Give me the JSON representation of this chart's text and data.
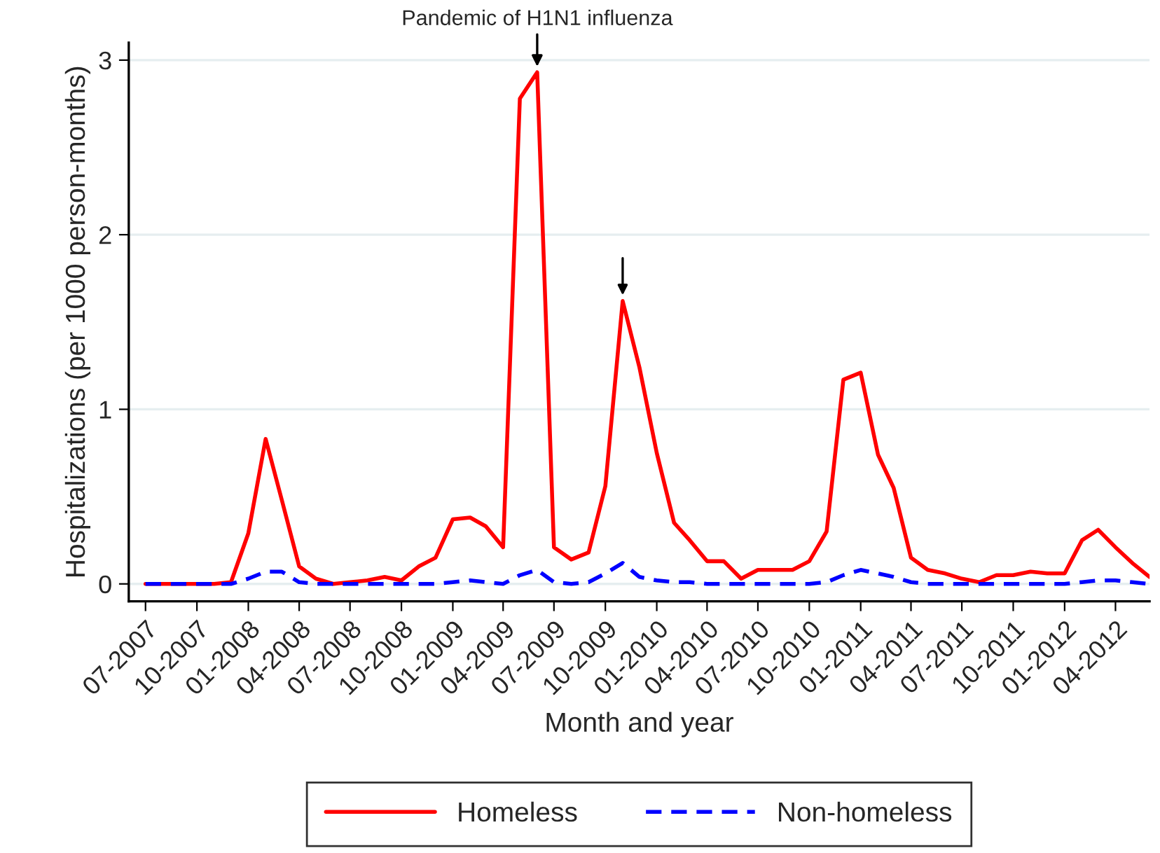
{
  "chart_data": {
    "type": "line",
    "xlabel": "Month and year",
    "ylabel": "Hospitalizations (per 1000 person-months)",
    "x": [
      "2007-07",
      "2007-08",
      "2007-09",
      "2007-10",
      "2007-11",
      "2007-12",
      "2008-01",
      "2008-02",
      "2008-03",
      "2008-04",
      "2008-05",
      "2008-06",
      "2008-07",
      "2008-08",
      "2008-09",
      "2008-10",
      "2008-11",
      "2008-12",
      "2009-01",
      "2009-02",
      "2009-03",
      "2009-04",
      "2009-05",
      "2009-06",
      "2009-07",
      "2009-08",
      "2009-09",
      "2009-10",
      "2009-11",
      "2009-12",
      "2010-01",
      "2010-02",
      "2010-03",
      "2010-04",
      "2010-05",
      "2010-06",
      "2010-07",
      "2010-08",
      "2010-09",
      "2010-10",
      "2010-11",
      "2010-12",
      "2011-01",
      "2011-02",
      "2011-03",
      "2011-04",
      "2011-05",
      "2011-06",
      "2011-07",
      "2011-08",
      "2011-09",
      "2011-10",
      "2011-11",
      "2011-12",
      "2012-01",
      "2012-02",
      "2012-03",
      "2012-04",
      "2012-05",
      "2012-06"
    ],
    "series": [
      {
        "name": "Homeless",
        "color": "#ff0000",
        "line_style": "solid",
        "values": [
          0,
          0,
          0,
          0,
          0,
          0.01,
          0.29,
          0.83,
          0.48,
          0.1,
          0.03,
          0,
          0.01,
          0.02,
          0.04,
          0.02,
          0.1,
          0.15,
          0.37,
          0.38,
          0.33,
          0.21,
          2.78,
          2.93,
          0.21,
          0.14,
          0.18,
          0.56,
          1.62,
          1.24,
          0.75,
          0.35,
          0.25,
          0.13,
          0.13,
          0.03,
          0.08,
          0.08,
          0.08,
          0.13,
          0.3,
          1.17,
          1.21,
          0.74,
          0.55,
          0.15,
          0.08,
          0.06,
          0.03,
          0.01,
          0.05,
          0.05,
          0.07,
          0.06,
          0.06,
          0.25,
          0.31,
          0.21,
          0.12,
          0.04
        ]
      },
      {
        "name": "Non-homeless",
        "color": "#0000ff",
        "line_style": "dashed",
        "values": [
          0,
          0,
          0,
          0,
          0,
          0,
          0.03,
          0.07,
          0.07,
          0.01,
          0,
          0,
          0,
          0,
          0,
          0,
          0,
          0,
          0.01,
          0.02,
          0.01,
          0,
          0.05,
          0.08,
          0.01,
          0,
          0.01,
          0.06,
          0.12,
          0.04,
          0.02,
          0.01,
          0.01,
          0,
          0,
          0,
          0,
          0,
          0,
          0,
          0.01,
          0.05,
          0.08,
          0.06,
          0.04,
          0.01,
          0,
          0,
          0,
          0,
          0,
          0,
          0,
          0,
          0,
          0.01,
          0.02,
          0.02,
          0.01,
          0
        ]
      }
    ],
    "xlim": [
      "2007-06",
      "2012-06"
    ],
    "xticks": [
      {
        "value": "2007-07",
        "label": "07-2007"
      },
      {
        "value": "2007-10",
        "label": "10-2007"
      },
      {
        "value": "2008-01",
        "label": "01-2008"
      },
      {
        "value": "2008-04",
        "label": "04-2008"
      },
      {
        "value": "2008-07",
        "label": "07-2008"
      },
      {
        "value": "2008-10",
        "label": "10-2008"
      },
      {
        "value": "2009-01",
        "label": "01-2009"
      },
      {
        "value": "2009-04",
        "label": "04-2009"
      },
      {
        "value": "2009-07",
        "label": "07-2009"
      },
      {
        "value": "2009-10",
        "label": "10-2009"
      },
      {
        "value": "2010-01",
        "label": "01-2010"
      },
      {
        "value": "2010-04",
        "label": "04-2010"
      },
      {
        "value": "2010-07",
        "label": "07-2010"
      },
      {
        "value": "2010-10",
        "label": "10-2010"
      },
      {
        "value": "2011-01",
        "label": "01-2011"
      },
      {
        "value": "2011-04",
        "label": "04-2011"
      },
      {
        "value": "2011-07",
        "label": "07-2011"
      },
      {
        "value": "2011-10",
        "label": "10-2011"
      },
      {
        "value": "2012-01",
        "label": "01-2012"
      },
      {
        "value": "2012-04",
        "label": "04-2012"
      }
    ],
    "ylim": [
      -0.1,
      3.1
    ],
    "yticks": [
      0,
      1,
      2,
      3
    ],
    "grid": "y",
    "legend": "bottom",
    "marker": "none",
    "annotations": [
      {
        "text": "Pandemic of H1N1 influenza",
        "x": "2009-06",
        "y": 2.93
      }
    ]
  }
}
